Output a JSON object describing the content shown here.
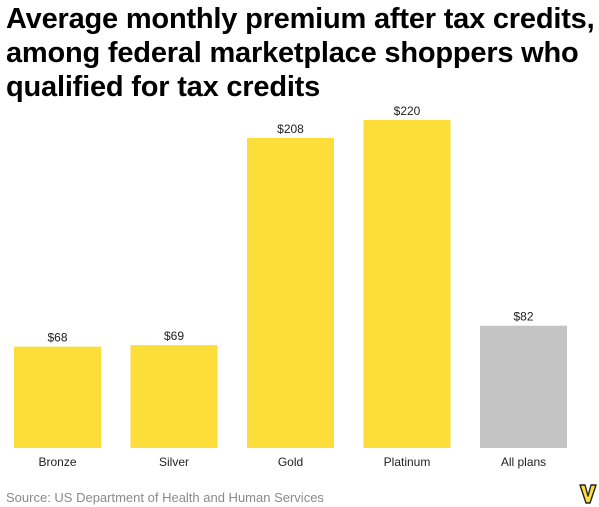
{
  "chart_data": {
    "type": "bar",
    "title": "Average monthly premium after tax credits, among federal marketplace shoppers who qualified for tax credits",
    "categories": [
      "Bronze",
      "Silver",
      "Gold",
      "Platinum",
      "All plans"
    ],
    "values": [
      68,
      69,
      208,
      220,
      82
    ],
    "value_labels": [
      "$68",
      "$69",
      "$208",
      "$220",
      "$82"
    ],
    "bar_colors": [
      "#fcdd3a",
      "#fcdd3a",
      "#fcdd3a",
      "#fcdd3a",
      "#c4c4c4"
    ],
    "xlabel": "",
    "ylabel": "",
    "ylim": [
      0,
      220
    ],
    "grid": false,
    "legend": "none"
  },
  "source": "Source: US Department of Health and Human Services",
  "logo_icon": "vox-v-logo-icon",
  "colors": {
    "highlight": "#fcdd3a",
    "total": "#c4c4c4",
    "bar_edge": "#d9b800"
  }
}
